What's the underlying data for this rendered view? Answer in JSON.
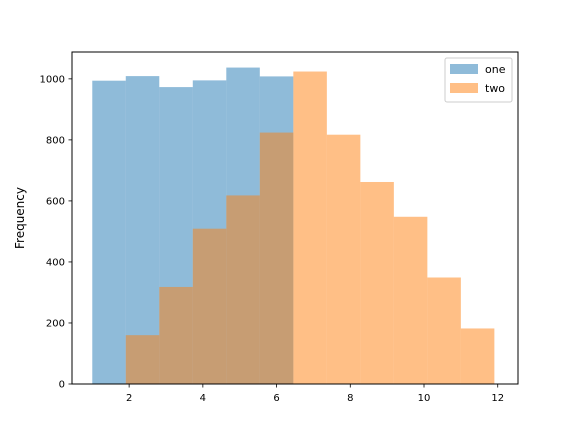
{
  "chart_data": {
    "type": "bar",
    "ylabel": "Frequency",
    "xlabel": "",
    "xlim": [
      0.45,
      12.55
    ],
    "ylim": [
      0,
      1088
    ],
    "x_ticks": [
      2,
      4,
      6,
      8,
      10,
      12
    ],
    "y_ticks": [
      0,
      200,
      400,
      600,
      800,
      1000
    ],
    "legend_position": "top-right",
    "series": [
      {
        "name": "one",
        "color": "#1f77b4",
        "bins": [
          [
            1.0,
            1.909,
            994
          ],
          [
            1.909,
            2.818,
            1009
          ],
          [
            2.818,
            3.727,
            973
          ],
          [
            3.727,
            4.636,
            995
          ],
          [
            4.636,
            5.545,
            1037
          ],
          [
            5.545,
            6.455,
            1008
          ]
        ]
      },
      {
        "name": "two",
        "color": "#ff7f0e",
        "bins": [
          [
            1.909,
            2.818,
            160
          ],
          [
            2.818,
            3.727,
            318
          ],
          [
            3.727,
            4.636,
            509
          ],
          [
            4.636,
            5.545,
            618
          ],
          [
            5.545,
            6.455,
            824
          ],
          [
            6.455,
            7.364,
            1024
          ],
          [
            7.364,
            8.273,
            817
          ],
          [
            8.273,
            9.182,
            662
          ],
          [
            9.182,
            10.091,
            548
          ],
          [
            10.091,
            11.0,
            349
          ],
          [
            11.0,
            11.909,
            182
          ]
        ]
      }
    ]
  }
}
